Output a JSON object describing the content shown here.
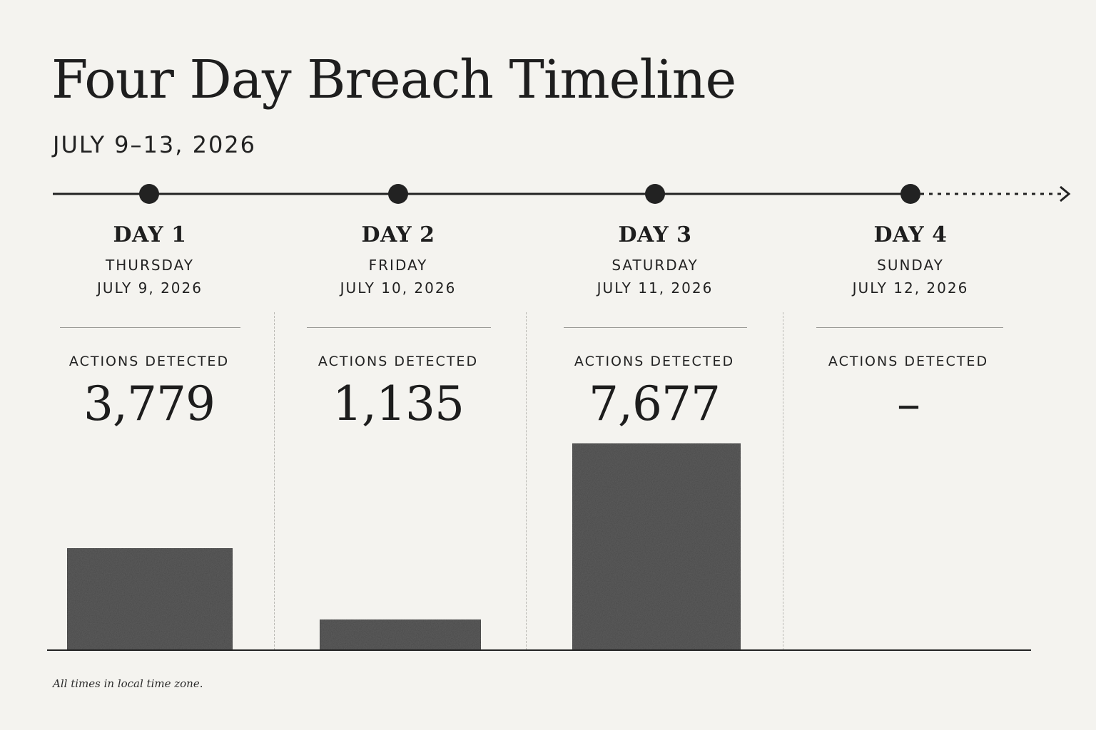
{
  "title": "Four Day Breach Timeline",
  "subtitle": "JULY 9–13, 2026",
  "footnote": "All times in local time zone.",
  "colors": {
    "background": "#f4f3ef",
    "bar": "#4a4a4a",
    "ink": "#1f1f1f"
  },
  "days": [
    {
      "label": "DAY 1",
      "weekday": "THURSDAY",
      "date": "JULY 9, 2026",
      "metric_label": "ACTIONS DETECTED",
      "value_text": "3,779"
    },
    {
      "label": "DAY 2",
      "weekday": "FRIDAY",
      "date": "JULY 10, 2026",
      "metric_label": "ACTIONS DETECTED",
      "value_text": "1,135"
    },
    {
      "label": "DAY 3",
      "weekday": "SATURDAY",
      "date": "JULY 11, 2026",
      "metric_label": "ACTIONS DETECTED",
      "value_text": "7,677"
    },
    {
      "label": "DAY 4",
      "weekday": "SUNDAY",
      "date": "JULY 12, 2026",
      "metric_label": "ACTIONS DETECTED",
      "value_text": "–"
    }
  ],
  "chart_data": {
    "type": "bar",
    "title": "Four Day Breach Timeline",
    "subtitle": "JULY 9–13, 2026",
    "categories": [
      "DAY 1",
      "DAY 2",
      "DAY 3",
      "DAY 4"
    ],
    "series": [
      {
        "values": [
          3779,
          1135,
          7677,
          null
        ]
      }
    ],
    "xlabel": "",
    "ylabel": "",
    "grid": false,
    "legend": "none"
  }
}
